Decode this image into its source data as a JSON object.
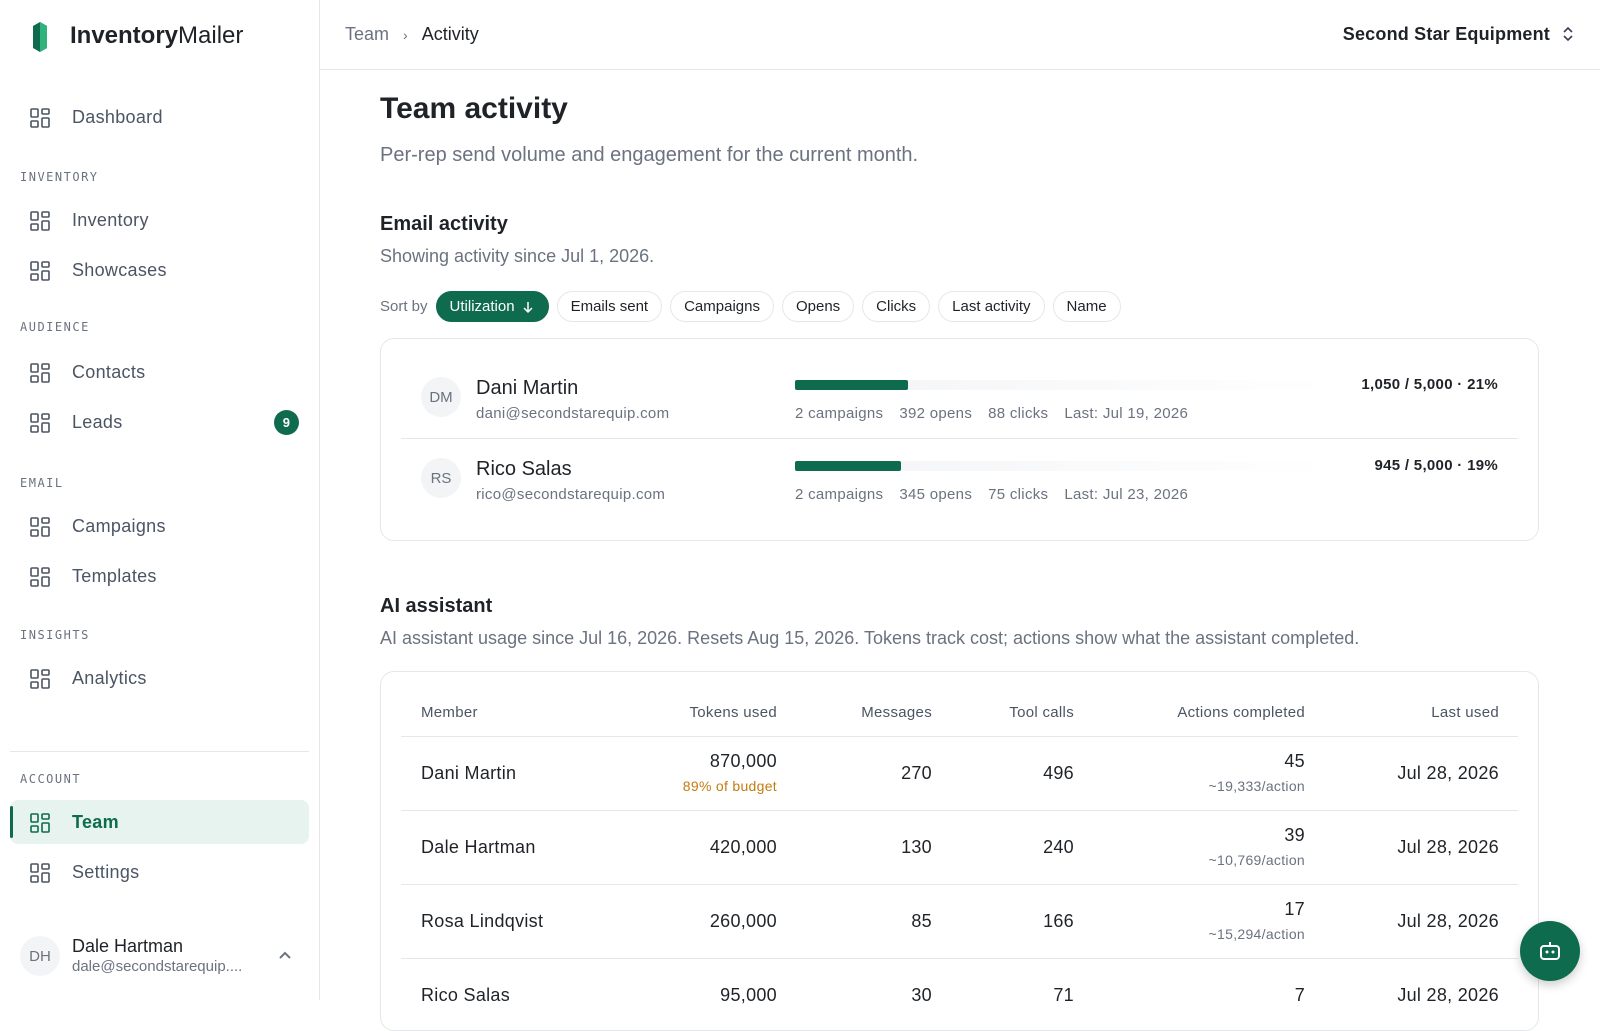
{
  "brand": {
    "bold": "Inventory",
    "light": "Mailer"
  },
  "nav": {
    "items": [
      {
        "kind": "item",
        "label": "Dashboard"
      },
      {
        "kind": "section",
        "label": "INVENTORY"
      },
      {
        "kind": "item",
        "label": "Inventory"
      },
      {
        "kind": "item",
        "label": "Showcases"
      },
      {
        "kind": "section",
        "label": "AUDIENCE"
      },
      {
        "kind": "item",
        "label": "Contacts"
      },
      {
        "kind": "item",
        "label": "Leads",
        "badge": 9
      },
      {
        "kind": "section",
        "label": "EMAIL"
      },
      {
        "kind": "item",
        "label": "Campaigns"
      },
      {
        "kind": "item",
        "label": "Templates"
      },
      {
        "kind": "section",
        "label": "INSIGHTS"
      },
      {
        "kind": "item",
        "label": "Analytics"
      },
      {
        "kind": "section",
        "label": "ACCOUNT"
      },
      {
        "kind": "item",
        "label": "Team",
        "active": true
      },
      {
        "kind": "item",
        "label": "Settings"
      }
    ]
  },
  "user": {
    "initials": "DH",
    "name": "Dale Hartman",
    "email": "dale@secondstarequip...."
  },
  "breadcrumb": [
    "Team",
    "Activity"
  ],
  "org": "Second Star Equipment",
  "page": {
    "title": "Team activity",
    "subtitle": "Per-rep send volume and engagement for the current month."
  },
  "email": {
    "heading": "Email activity",
    "since": "Showing activity since Jul 1, 2026.",
    "sort_label": "Sort by",
    "sort_options": [
      "Utilization",
      "Emails sent",
      "Campaigns",
      "Opens",
      "Clicks",
      "Last activity",
      "Name"
    ],
    "reps": [
      {
        "initials": "DM",
        "name": "Dani Martin",
        "email": "dani@secondstarequip.com",
        "usage": "1,050 / 5,000 · 21%",
        "stats": [
          "2 campaigns",
          "392 opens",
          "88 clicks",
          "Last: Jul 19, 2026"
        ]
      },
      {
        "initials": "RS",
        "name": "Rico Salas",
        "email": "rico@secondstarequip.com",
        "usage": "945 / 5,000 · 19%",
        "stats": [
          "2 campaigns",
          "345 opens",
          "75 clicks",
          "Last: Jul 23, 2026"
        ]
      }
    ]
  },
  "ai": {
    "heading": "AI assistant",
    "description": "AI assistant usage since Jul 16, 2026. Resets Aug 15, 2026. Tokens track cost; actions show what the assistant completed.",
    "columns": [
      "Member",
      "Tokens used",
      "Messages",
      "Tool calls",
      "Actions completed",
      "Last used"
    ],
    "rows": [
      {
        "member": "Dani Martin",
        "tokens": "870,000",
        "budget": "89% of budget",
        "messages": 270,
        "tool_calls": 496,
        "actions": 45,
        "per_action": "~19,333/action",
        "last_used": "Jul 28, 2026"
      },
      {
        "member": "Dale Hartman",
        "tokens": "420,000",
        "messages": 130,
        "tool_calls": 240,
        "actions": 39,
        "per_action": "~10,769/action",
        "last_used": "Jul 28, 2026"
      },
      {
        "member": "Rosa Lindqvist",
        "tokens": "260,000",
        "messages": 85,
        "tool_calls": 166,
        "actions": 17,
        "per_action": "~15,294/action",
        "last_used": "Jul 28, 2026"
      },
      {
        "member": "Rico Salas",
        "tokens": "95,000",
        "messages": 30,
        "tool_calls": 71,
        "actions": 7,
        "last_used": "Jul 28, 2026"
      }
    ]
  }
}
